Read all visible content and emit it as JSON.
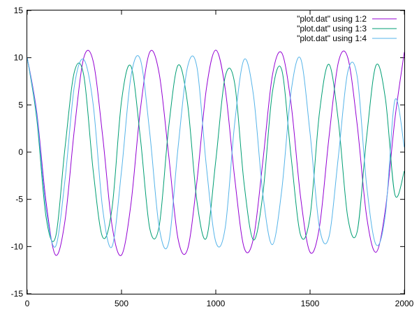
{
  "chart_data": {
    "type": "line",
    "xlim": [
      0,
      2000
    ],
    "ylim": [
      -15,
      15
    ],
    "x_ticks": [
      0,
      500,
      1000,
      1500,
      2000
    ],
    "y_ticks": [
      -15,
      -10,
      -5,
      0,
      5,
      10,
      15
    ],
    "x_tick_labels": [
      "0",
      "500",
      "1000",
      "1500",
      "2000"
    ],
    "y_tick_labels": [
      "-15",
      "-10",
      "-5",
      "0",
      "5",
      "10",
      "15"
    ],
    "grid": false,
    "legend_position": "top-right",
    "series": [
      {
        "name": "\"plot.dat\" using 1:2",
        "color": "#9400d3",
        "x": [
          0,
          50,
          100,
          150,
          200,
          250,
          300,
          350,
          400,
          450,
          500,
          550,
          600,
          650,
          700,
          750,
          800,
          850,
          900,
          950,
          1000,
          1050,
          1100,
          1150,
          1200,
          1250,
          1300,
          1350,
          1400,
          1450,
          1500,
          1550,
          1600,
          1650,
          1700,
          1750,
          1800,
          1850,
          1900,
          1950,
          2000
        ],
        "y": [
          10.0,
          4.3,
          -5.3,
          -10.9,
          -7.3,
          2.4,
          10.0,
          9.6,
          1.7,
          -7.8,
          -10.9,
          -5.5,
          4.5,
          10.6,
          8.3,
          -0.3,
          -9.2,
          -10.3,
          -3.1,
          6.7,
          10.8,
          6.7,
          -2.7,
          -10.1,
          -9.1,
          -0.9,
          8.1,
          10.5,
          5.0,
          -4.8,
          -10.6,
          -7.9,
          1.5,
          9.5,
          10.0,
          2.9,
          -6.8,
          -10.6,
          -6.0,
          3.5,
          10.6
        ]
      },
      {
        "name": "\"plot.dat\" using 1:3",
        "color": "#009e73",
        "x": [
          0,
          50,
          100,
          150,
          200,
          250,
          300,
          350,
          400,
          450,
          500,
          550,
          600,
          650,
          700,
          750,
          800,
          850,
          900,
          950,
          1000,
          1050,
          1100,
          1150,
          1200,
          1250,
          1300,
          1350,
          1400,
          1450,
          1500,
          1550,
          1600,
          1650,
          1700,
          1750,
          1800,
          1850,
          1900,
          1950,
          2000
        ],
        "y": [
          10.0,
          3.6,
          -6.9,
          -9.0,
          0.4,
          8.5,
          8.1,
          -2.0,
          -9.0,
          -5.9,
          5.4,
          9.1,
          1.5,
          -8.1,
          -7.8,
          2.6,
          9.2,
          5.2,
          -5.2,
          -9.1,
          -0.9,
          8.0,
          7.3,
          -3.3,
          -9.3,
          -4.4,
          6.3,
          8.7,
          -0.6,
          -8.8,
          -6.8,
          4.2,
          9.3,
          3.3,
          -6.9,
          -8.4,
          1.6,
          9.2,
          5.6,
          -4.5,
          -2.0
        ]
      },
      {
        "name": "\"plot.dat\" using 1:4",
        "color": "#56b4e9",
        "x": [
          0,
          50,
          100,
          150,
          200,
          250,
          300,
          350,
          400,
          450,
          500,
          550,
          600,
          650,
          700,
          750,
          800,
          850,
          900,
          950,
          1000,
          1050,
          1100,
          1150,
          1200,
          1250,
          1300,
          1350,
          1400,
          1450,
          1500,
          1550,
          1600,
          1650,
          1700,
          1750,
          1800,
          1850,
          1900,
          1950,
          2000
        ],
        "y": [
          10.0,
          4.0,
          -6.0,
          -10.0,
          -3.0,
          7.0,
          9.8,
          5.0,
          -6.0,
          -10.0,
          -2.0,
          8.0,
          9.8,
          2.0,
          -8.0,
          -9.6,
          0.5,
          9.0,
          9.0,
          -1.5,
          -9.5,
          -8.0,
          3.0,
          9.8,
          6.0,
          -4.5,
          -9.8,
          -4.0,
          6.5,
          9.9,
          2.0,
          -8.0,
          -9.0,
          -0.5,
          8.5,
          8.0,
          -3.5,
          -9.8,
          -6.5,
          5.5,
          0.5
        ]
      }
    ]
  }
}
